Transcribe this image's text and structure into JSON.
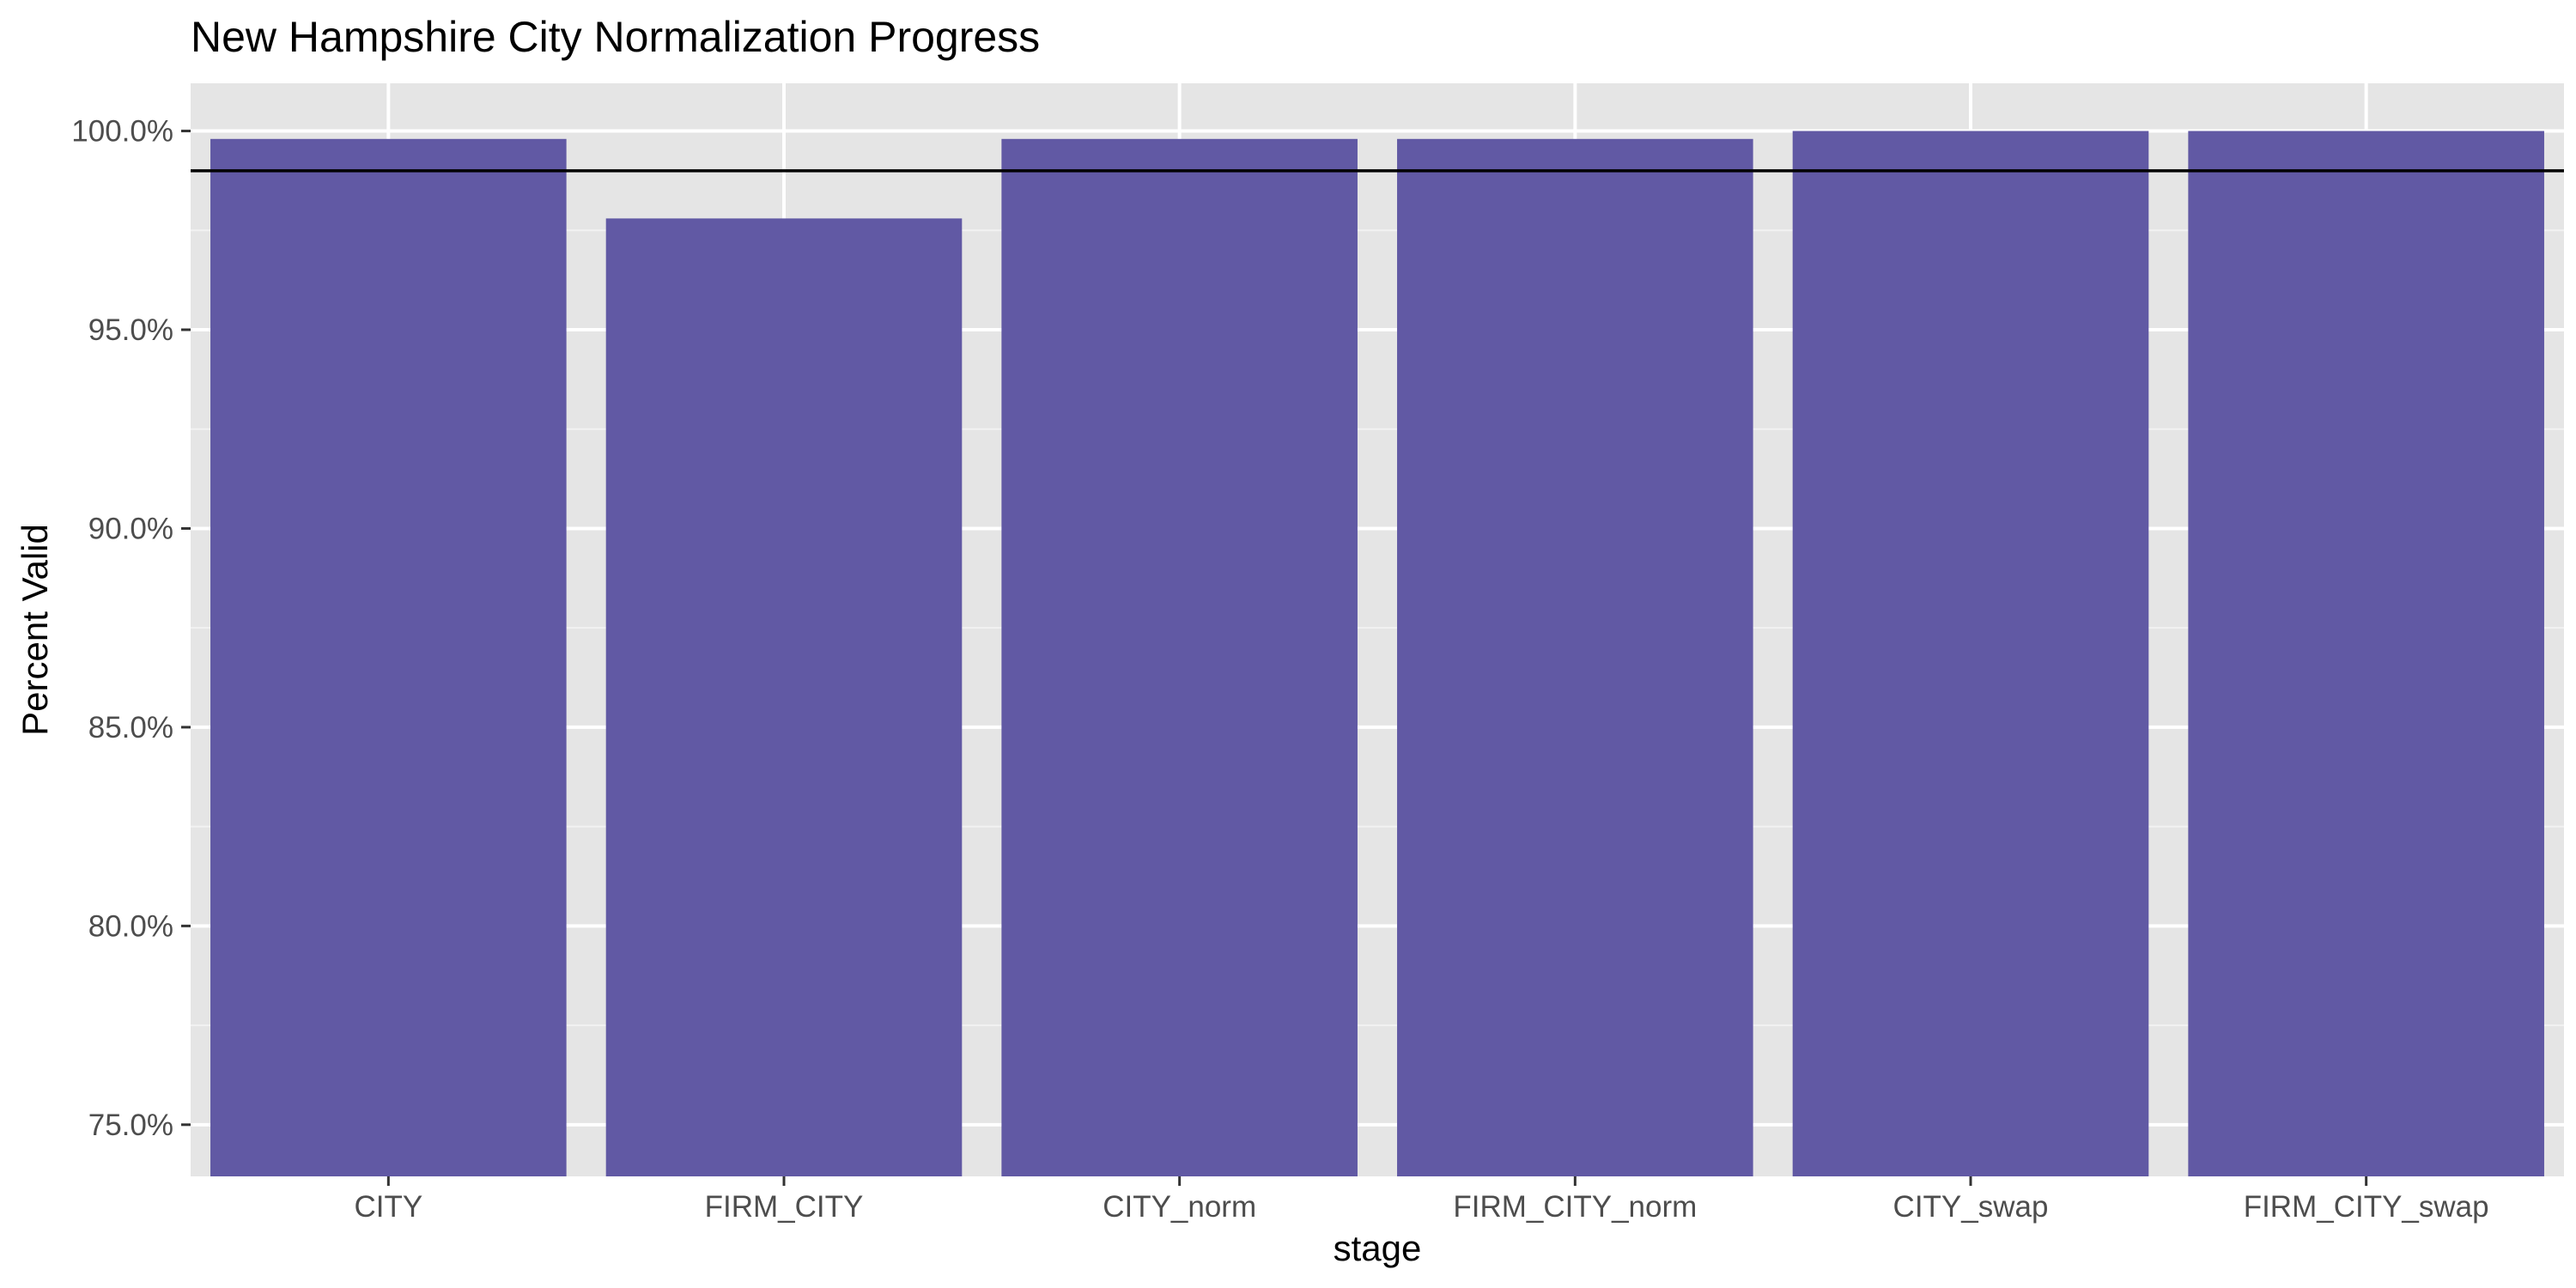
{
  "chart_data": {
    "type": "bar",
    "title": "New Hampshire City Normalization Progress",
    "xlabel": "stage",
    "ylabel": "Percent Valid",
    "categories": [
      "CITY",
      "FIRM_CITY",
      "CITY_norm",
      "FIRM_CITY_norm",
      "CITY_swap",
      "FIRM_CITY_swap"
    ],
    "values": [
      0.998,
      0.978,
      0.998,
      0.998,
      1.0,
      1.0
    ],
    "ylim": [
      0.737,
      1.012
    ],
    "yticks": [
      0.75,
      0.8,
      0.85,
      0.9,
      0.95,
      1.0
    ],
    "ytick_labels": [
      "75.0%",
      "80.0%",
      "85.0%",
      "90.0%",
      "95.0%",
      "100.0%"
    ],
    "reference_line": 0.99,
    "bar_color": "#6159a4",
    "panel_background": "#e5e5e5",
    "grid": true,
    "legend": "none"
  }
}
